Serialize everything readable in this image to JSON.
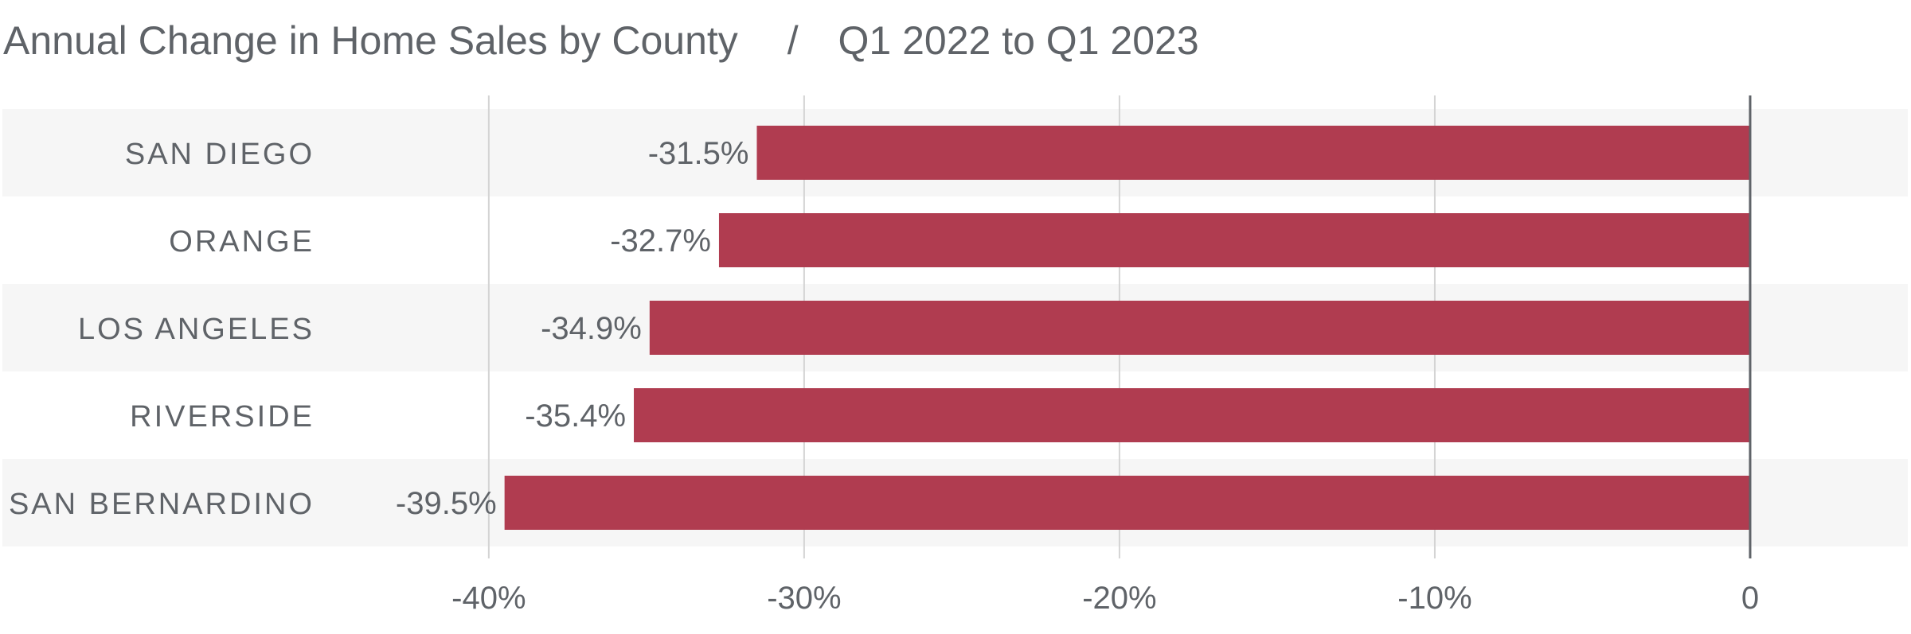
{
  "chart_data": {
    "type": "bar",
    "orientation": "horizontal",
    "title": "Annual Change in Home Sales by County",
    "subtitle": "Q1 2022 to Q1 2023",
    "title_separator": "/",
    "categories": [
      "SAN DIEGO",
      "ORANGE",
      "LOS ANGELES",
      "RIVERSIDE",
      "SAN BERNARDINO"
    ],
    "values": [
      -31.5,
      -32.7,
      -34.9,
      -35.4,
      -39.5
    ],
    "value_labels": [
      "-31.5%",
      "-32.7%",
      "-34.9%",
      "-35.4%",
      "-39.5%"
    ],
    "xlim": [
      -55.5,
      5.0
    ],
    "x_ticks": [
      -40,
      -30,
      -20,
      -10,
      0
    ],
    "x_tick_labels": [
      "-40%",
      "-30%",
      "-20%",
      "-10%",
      "0"
    ],
    "grid": true,
    "legend": "none",
    "colors": {
      "bar": "#b03c50",
      "band": "#f6f6f6",
      "grid": "#d4d4d4",
      "zero_line": "#5f6368",
      "text": "#5f6368"
    }
  }
}
